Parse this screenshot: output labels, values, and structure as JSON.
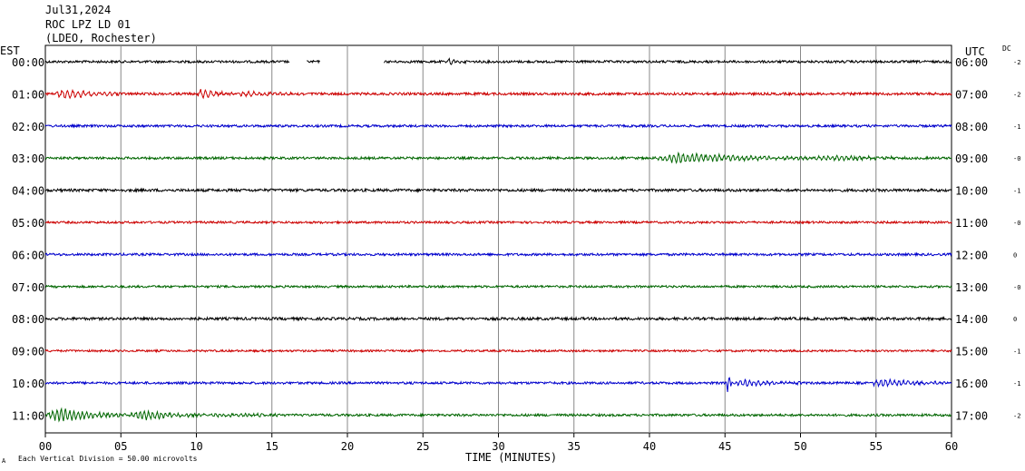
{
  "header": {
    "date": "Jul31,2024",
    "station": "ROC LPZ LD 01",
    "network": "(LDEO, Rochester)"
  },
  "chart_data": {
    "type": "line",
    "left_timezone": "EST",
    "right_timezone": "UTC",
    "dc_label": "DC",
    "xlabel": "TIME (MINUTES)",
    "xlim": [
      0,
      60
    ],
    "x_ticks": [
      "00",
      "05",
      "10",
      "15",
      "20",
      "25",
      "30",
      "35",
      "40",
      "45",
      "50",
      "55",
      "60"
    ],
    "footer_note": "Each Vertical Division =   50.00 microvolts",
    "colors": {
      "black": "#000000",
      "red": "#cc0000",
      "blue": "#0000cc",
      "green": "#006600"
    },
    "traces": [
      {
        "est": "00:00",
        "utc": "06:00",
        "dc": "-2",
        "color": "black",
        "base_noise": 1.3,
        "gaps": [
          [
            16.2,
            17.3
          ],
          [
            18.2,
            22.4
          ]
        ],
        "events": [
          {
            "t": 26.5,
            "dur": 1.5,
            "amp": 3,
            "period": 0.3
          }
        ]
      },
      {
        "est": "01:00",
        "utc": "07:00",
        "dc": "-2",
        "color": "red",
        "base_noise": 1.4,
        "gaps": [],
        "events": [
          {
            "t": 0.5,
            "dur": 4.5,
            "amp": 5,
            "period": 0.35
          },
          {
            "t": 10.0,
            "dur": 2.5,
            "amp": 5,
            "period": 0.35
          },
          {
            "t": 12.5,
            "dur": 5,
            "amp": 2.5,
            "period": 0.35
          }
        ]
      },
      {
        "est": "02:00",
        "utc": "08:00",
        "dc": "-1",
        "color": "blue",
        "base_noise": 1.3,
        "gaps": [],
        "events": []
      },
      {
        "est": "03:00",
        "utc": "09:00",
        "dc": "-0",
        "color": "green",
        "base_noise": 1.3,
        "gaps": [],
        "events": [
          {
            "t": 40.2,
            "dur": 10.5,
            "amp": 5,
            "period": 0.3
          },
          {
            "t": 50.7,
            "dur": 7,
            "amp": 2.5,
            "period": 0.3
          }
        ]
      },
      {
        "est": "04:00",
        "utc": "10:00",
        "dc": "-1",
        "color": "black",
        "base_noise": 1.5,
        "gaps": [],
        "events": []
      },
      {
        "est": "05:00",
        "utc": "11:00",
        "dc": "-0",
        "color": "red",
        "base_noise": 1.2,
        "gaps": [],
        "events": []
      },
      {
        "est": "06:00",
        "utc": "12:00",
        "dc": "0",
        "color": "blue",
        "base_noise": 1.3,
        "gaps": [],
        "events": []
      },
      {
        "est": "07:00",
        "utc": "13:00",
        "dc": "-0",
        "color": "green",
        "base_noise": 1.2,
        "gaps": [],
        "events": []
      },
      {
        "est": "08:00",
        "utc": "14:00",
        "dc": "0",
        "color": "black",
        "base_noise": 1.5,
        "gaps": [],
        "events": []
      },
      {
        "est": "09:00",
        "utc": "15:00",
        "dc": "-1",
        "color": "red",
        "base_noise": 1.1,
        "gaps": [],
        "events": []
      },
      {
        "est": "10:00",
        "utc": "16:00",
        "dc": "-1",
        "color": "blue",
        "base_noise": 1.3,
        "gaps": [],
        "events": [
          {
            "t": 45.1,
            "dur": 0.4,
            "amp": 13,
            "period": 0.25
          },
          {
            "t": 45.5,
            "dur": 4.5,
            "amp": 3.5,
            "period": 0.3
          },
          {
            "t": 54.5,
            "dur": 5.5,
            "amp": 4,
            "period": 0.3
          }
        ]
      },
      {
        "est": "11:00",
        "utc": "17:00",
        "dc": "-2",
        "color": "green",
        "base_noise": 1.3,
        "gaps": [],
        "events": [
          {
            "t": 0,
            "dur": 5.5,
            "amp": 7,
            "period": 0.28
          },
          {
            "t": 5.5,
            "dur": 5,
            "amp": 5,
            "period": 0.28
          },
          {
            "t": 10.5,
            "dur": 7,
            "amp": 2,
            "period": 0.28
          }
        ]
      }
    ]
  }
}
